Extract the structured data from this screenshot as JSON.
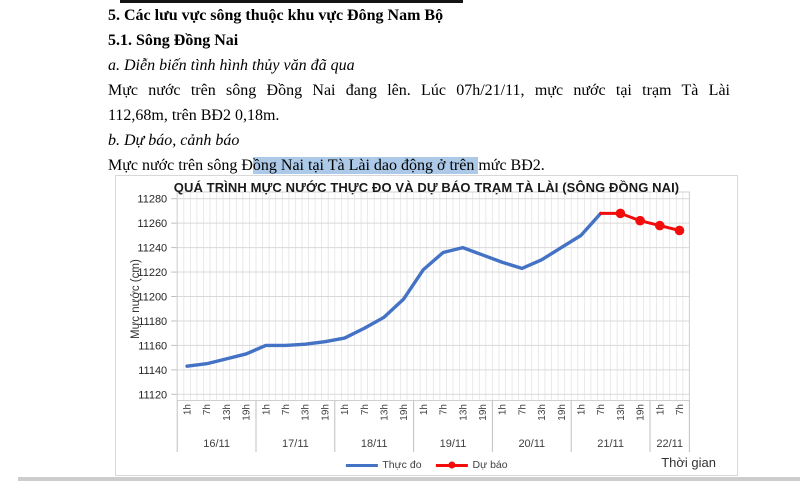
{
  "document": {
    "section5_title": "5. Các lưu vực sông thuộc khu vực Đông Nam Bộ",
    "section51_title": "5.1. Sông Đồng Nai",
    "sub_a": "a. Diễn biến tình hình thủy văn đã qua",
    "para_a_line1": "Mực nước trên sông Đồng Nai đang lên. Lúc 07h/21/11, mực nước tại trạm Tà Lài",
    "para_a_line2": "112,68m, trên BĐ2 0,18m.",
    "sub_b": "b. Dự báo, cảnh báo",
    "para_b_prefix": "Mực nước trên sông Đ",
    "para_b_highlight": "ồng Nai tại Tà Lài dao động ở trên ",
    "para_b_suffix": "mức BĐ2."
  },
  "chart_data": {
    "type": "line",
    "title": "QUÁ TRÌNH MỰC NƯỚC THỰC ĐO VÀ DỰ BÁO TRẠM TÀ LÀI (SÔNG ĐỒNG NAI)",
    "ylabel": "Mực nước (cm)",
    "xlabel": "Thời gian",
    "ylim": [
      11120,
      11280
    ],
    "yticks": [
      11280,
      11260,
      11240,
      11220,
      11200,
      11180,
      11160,
      11140,
      11120
    ],
    "grid": true,
    "legend_position": "bottom",
    "days": [
      {
        "label": "16/11",
        "hours": [
          "1h",
          "7h",
          "13h",
          "19h"
        ]
      },
      {
        "label": "17/11",
        "hours": [
          "1h",
          "7h",
          "13h",
          "19h"
        ]
      },
      {
        "label": "18/11",
        "hours": [
          "1h",
          "7h",
          "13h",
          "19h"
        ]
      },
      {
        "label": "19/11",
        "hours": [
          "1h",
          "7h",
          "13h",
          "19h"
        ]
      },
      {
        "label": "20/11",
        "hours": [
          "1h",
          "7h",
          "13h",
          "19h"
        ]
      },
      {
        "label": "21/11",
        "hours": [
          "1h",
          "7h",
          "13h",
          "19h"
        ]
      },
      {
        "label": "22/11",
        "hours": [
          "1h",
          "7h"
        ]
      }
    ],
    "series": [
      {
        "name": "Thực đo",
        "color": "#4472c4",
        "start_index": 0,
        "markers": false,
        "values": [
          11143,
          11145,
          11149,
          11153,
          11160,
          11160,
          11161,
          11163,
          11166,
          11174,
          11183,
          11198,
          11222,
          11236,
          11240,
          11234,
          11228,
          11223,
          11230,
          11240,
          11250,
          11268
        ]
      },
      {
        "name": "Dự báo",
        "color": "#f20d0d",
        "start_index": 21,
        "markers": true,
        "marker_skip_first": true,
        "values": [
          11268,
          11268,
          11262,
          11258,
          11254
        ]
      }
    ]
  }
}
